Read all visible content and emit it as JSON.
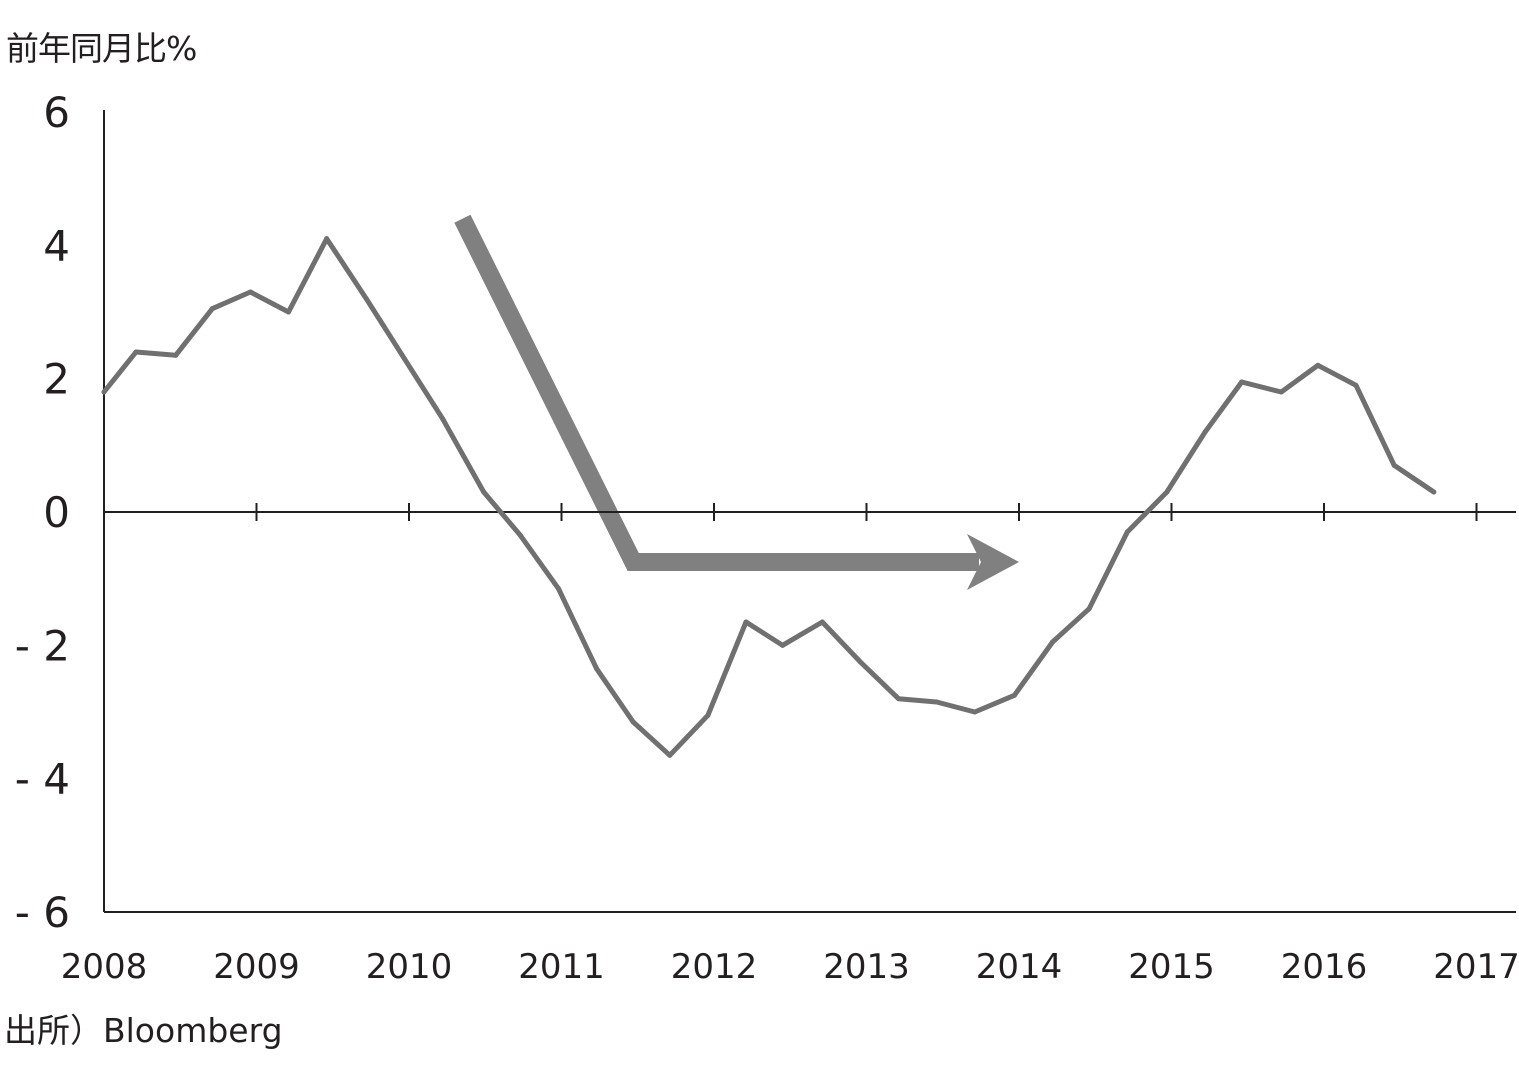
{
  "chart_data": {
    "type": "line",
    "unit_label": "前年同月比%",
    "source": "出所）Bloomberg",
    "x_tick_labels": [
      "2008",
      "2009",
      "2010",
      "2011",
      "2012",
      "2013",
      "2014",
      "2015",
      "2016",
      "2017"
    ],
    "y_tick_labels": [
      "6",
      "4",
      "2",
      "0",
      "- 2",
      "- 4",
      "- 6"
    ],
    "xlim": [
      2008,
      2017.25
    ],
    "ylim": [
      -6,
      6
    ],
    "series": [
      {
        "color": "#707070",
        "x": [
          2008.0,
          2008.21,
          2008.47,
          2008.71,
          2008.96,
          2009.21,
          2009.46,
          2009.72,
          2009.97,
          2010.22,
          2010.49,
          2010.73,
          2010.98,
          2011.23,
          2011.47,
          2011.71,
          2011.96,
          2012.21,
          2012.45,
          2012.71,
          2012.96,
          2013.21,
          2013.46,
          2013.71,
          2013.97,
          2014.22,
          2014.46,
          2014.71,
          2014.97,
          2015.22,
          2015.46,
          2015.72,
          2015.96,
          2016.21,
          2016.46,
          2016.72
        ],
        "y": [
          1.8,
          2.4,
          2.35,
          3.05,
          3.3,
          3.0,
          4.1,
          3.2,
          2.3,
          1.4,
          0.3,
          -0.35,
          -1.15,
          -2.35,
          -3.15,
          -3.65,
          -3.05,
          -1.65,
          -2.0,
          -1.65,
          -2.25,
          -2.8,
          -2.85,
          -3.0,
          -2.75,
          -1.95,
          -1.45,
          -0.3,
          0.3,
          1.2,
          1.95,
          1.8,
          2.2,
          1.9,
          0.7,
          0.3
        ]
      }
    ],
    "annotation_arrow": {
      "color": "#808080",
      "points": [
        {
          "x": 2010.35,
          "y": 4.4
        },
        {
          "x": 2011.47,
          "y": -0.75
        },
        {
          "x": 2014.0,
          "y": -0.75
        }
      ]
    }
  }
}
